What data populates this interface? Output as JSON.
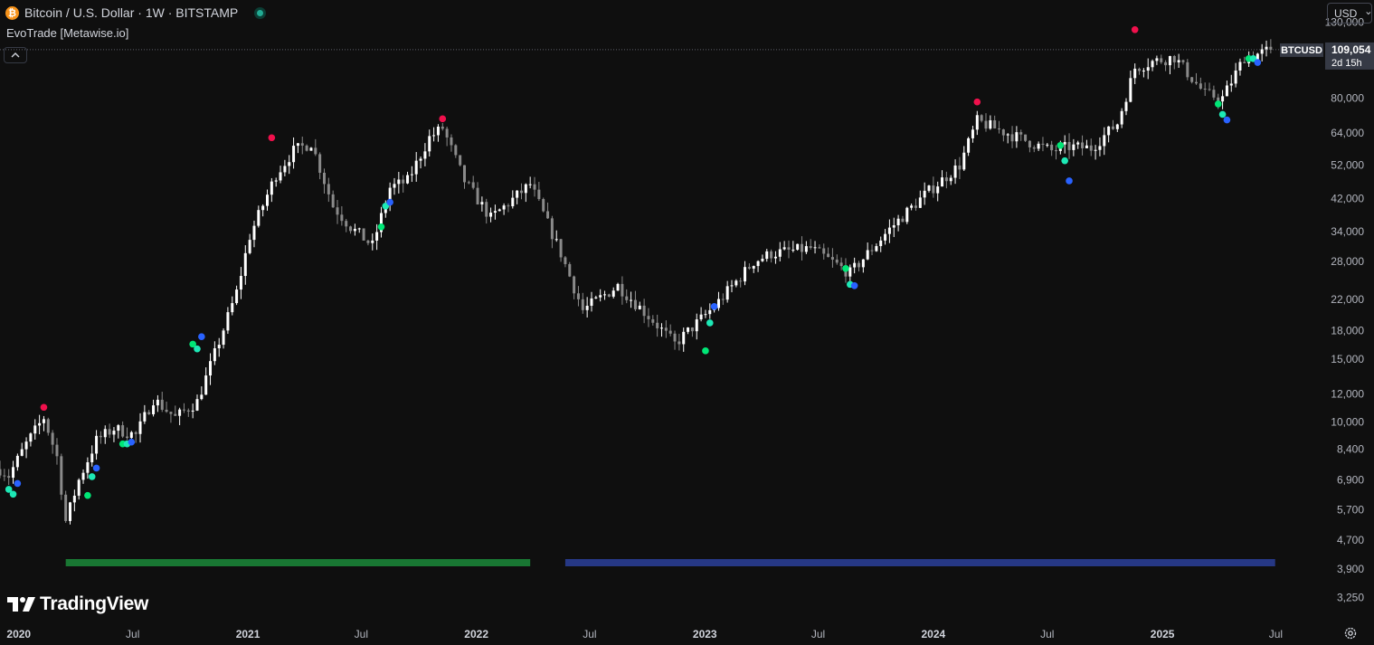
{
  "header": {
    "title": "Bitcoin / U.S. Dollar · 1W · BITSTAMP",
    "coin_symbol": "₿",
    "indicator": "EvoTrade [Metawise.io]"
  },
  "currency_selector": {
    "value": "USD"
  },
  "price_tag": {
    "symbol": "BTCUSD",
    "price": "109,054",
    "countdown": "2d 15h"
  },
  "logo": {
    "text": "TradingView"
  },
  "colors": {
    "background": "#0f0f0f",
    "candle_up": "#ffffff",
    "candle_down": "#8a8a8a",
    "signal_red": "#f0104c",
    "signal_green": "#00e676",
    "signal_cyan": "#1de9b6",
    "signal_blue": "#2962ff",
    "band_green": "#1b8a3a",
    "band_blue": "#2a3f9a"
  },
  "chart_data": {
    "type": "candlestick",
    "symbol": "BTCUSD",
    "interval": "1W",
    "y_scale": "log",
    "ylim": [
      2900,
      150000
    ],
    "y_ticks": [
      "130,000",
      "80,000",
      "64,000",
      "52,000",
      "42,000",
      "34,000",
      "28,000",
      "22,000",
      "18,000",
      "15,000",
      "12,000",
      "10,000",
      "8,400",
      "6,900",
      "5,700",
      "4,700",
      "3,900",
      "3,250"
    ],
    "x_ticks": [
      "2020",
      "Jul",
      "2021",
      "Jul",
      "2022",
      "Jul",
      "2023",
      "Jul",
      "2024",
      "Jul",
      "2025",
      "Jul"
    ],
    "x_tick_dates": [
      "2020-01-01",
      "2020-07-01",
      "2021-01-01",
      "2021-07-01",
      "2022-01-01",
      "2022-07-01",
      "2023-01-01",
      "2023-07-01",
      "2024-01-01",
      "2024-07-01",
      "2025-01-01",
      "2025-07-01"
    ],
    "x_range": [
      "2019-12-02",
      "2025-09-15"
    ],
    "last_price": 109054,
    "price_path": [
      [
        "2019-12-02",
        7400
      ],
      [
        "2019-12-16",
        7100
      ],
      [
        "2020-01-13",
        8700
      ],
      [
        "2020-02-10",
        10300
      ],
      [
        "2020-03-02",
        8000
      ],
      [
        "2020-03-16",
        5300
      ],
      [
        "2020-04-06",
        6900
      ],
      [
        "2020-05-04",
        8900
      ],
      [
        "2020-06-01",
        9600
      ],
      [
        "2020-07-06",
        9200
      ],
      [
        "2020-08-03",
        11600
      ],
      [
        "2020-09-07",
        10300
      ],
      [
        "2020-10-12",
        11400
      ],
      [
        "2020-11-09",
        15500
      ],
      [
        "2020-12-14",
        23000
      ],
      [
        "2021-01-04",
        33000
      ],
      [
        "2021-02-15",
        49000
      ],
      [
        "2021-03-15",
        57000
      ],
      [
        "2021-04-12",
        60000
      ],
      [
        "2021-05-17",
        40000
      ],
      [
        "2021-06-14",
        35000
      ],
      [
        "2021-07-19",
        31000
      ],
      [
        "2021-08-16",
        45000
      ],
      [
        "2021-09-13",
        47000
      ],
      [
        "2021-10-18",
        62000
      ],
      [
        "2021-11-08",
        66000
      ],
      [
        "2021-12-13",
        47000
      ],
      [
        "2022-01-24",
        37000
      ],
      [
        "2022-03-28",
        46000
      ],
      [
        "2022-05-16",
        29500
      ],
      [
        "2022-06-20",
        20500
      ],
      [
        "2022-08-15",
        24000
      ],
      [
        "2022-10-10",
        19200
      ],
      [
        "2022-11-14",
        16500
      ],
      [
        "2023-01-16",
        21000
      ],
      [
        "2023-03-20",
        28000
      ],
      [
        "2023-04-17",
        29500
      ],
      [
        "2023-06-19",
        30500
      ],
      [
        "2023-08-21",
        26000
      ],
      [
        "2023-10-23",
        34500
      ],
      [
        "2023-12-18",
        43000
      ],
      [
        "2024-02-12",
        52000
      ],
      [
        "2024-03-11",
        69000
      ],
      [
        "2024-05-06",
        63000
      ],
      [
        "2024-07-08",
        57000
      ],
      [
        "2024-08-05",
        58500
      ],
      [
        "2024-09-09",
        58000
      ],
      [
        "2024-10-21",
        68000
      ],
      [
        "2024-11-18",
        97000
      ],
      [
        "2024-12-16",
        101000
      ],
      [
        "2025-01-20",
        104000
      ],
      [
        "2025-03-10",
        82000
      ],
      [
        "2025-04-07",
        80000
      ],
      [
        "2025-05-12",
        104000
      ],
      [
        "2025-06-02",
        106000
      ],
      [
        "2025-06-23",
        109054
      ]
    ],
    "signals": [
      {
        "date": "2019-12-16",
        "price": 6500,
        "color": "cyan"
      },
      {
        "date": "2019-12-23",
        "price": 6300,
        "color": "cyan"
      },
      {
        "date": "2019-12-30",
        "price": 6750,
        "color": "blue"
      },
      {
        "date": "2020-02-10",
        "price": 11000,
        "color": "red"
      },
      {
        "date": "2020-04-20",
        "price": 6250,
        "color": "green"
      },
      {
        "date": "2020-04-27",
        "price": 7050,
        "color": "cyan"
      },
      {
        "date": "2020-05-04",
        "price": 7450,
        "color": "blue"
      },
      {
        "date": "2020-06-15",
        "price": 8700,
        "color": "green"
      },
      {
        "date": "2020-06-22",
        "price": 8700,
        "color": "cyan"
      },
      {
        "date": "2020-06-29",
        "price": 8800,
        "color": "blue"
      },
      {
        "date": "2020-10-05",
        "price": 16500,
        "color": "green"
      },
      {
        "date": "2020-10-12",
        "price": 16000,
        "color": "cyan"
      },
      {
        "date": "2020-10-19",
        "price": 17300,
        "color": "blue"
      },
      {
        "date": "2021-02-08",
        "price": 62000,
        "color": "red"
      },
      {
        "date": "2021-08-02",
        "price": 35000,
        "color": "green"
      },
      {
        "date": "2021-08-09",
        "price": 40000,
        "color": "cyan"
      },
      {
        "date": "2021-08-16",
        "price": 41000,
        "color": "blue"
      },
      {
        "date": "2021-11-08",
        "price": 70000,
        "color": "red"
      },
      {
        "date": "2023-01-02",
        "price": 15800,
        "color": "green"
      },
      {
        "date": "2023-01-09",
        "price": 18900,
        "color": "cyan"
      },
      {
        "date": "2023-01-16",
        "price": 21000,
        "color": "blue"
      },
      {
        "date": "2023-08-14",
        "price": 26800,
        "color": "green"
      },
      {
        "date": "2023-08-21",
        "price": 24200,
        "color": "cyan"
      },
      {
        "date": "2023-08-28",
        "price": 24000,
        "color": "blue"
      },
      {
        "date": "2024-03-11",
        "price": 78000,
        "color": "red"
      },
      {
        "date": "2024-07-22",
        "price": 59000,
        "color": "green"
      },
      {
        "date": "2024-07-29",
        "price": 53500,
        "color": "cyan"
      },
      {
        "date": "2024-08-05",
        "price": 47000,
        "color": "blue"
      },
      {
        "date": "2024-11-18",
        "price": 124000,
        "color": "red"
      },
      {
        "date": "2025-03-31",
        "price": 77000,
        "color": "green"
      },
      {
        "date": "2025-04-07",
        "price": 72000,
        "color": "cyan"
      },
      {
        "date": "2025-04-14",
        "price": 69500,
        "color": "blue"
      },
      {
        "date": "2025-05-19",
        "price": 103000,
        "color": "green"
      },
      {
        "date": "2025-05-26",
        "price": 103000,
        "color": "cyan"
      },
      {
        "date": "2025-06-02",
        "price": 100500,
        "color": "blue"
      }
    ],
    "bands": [
      {
        "start": "2020-03-16",
        "end": "2022-03-28",
        "color": "green"
      },
      {
        "start": "2022-05-23",
        "end": "2025-06-30",
        "color": "blue"
      }
    ]
  }
}
